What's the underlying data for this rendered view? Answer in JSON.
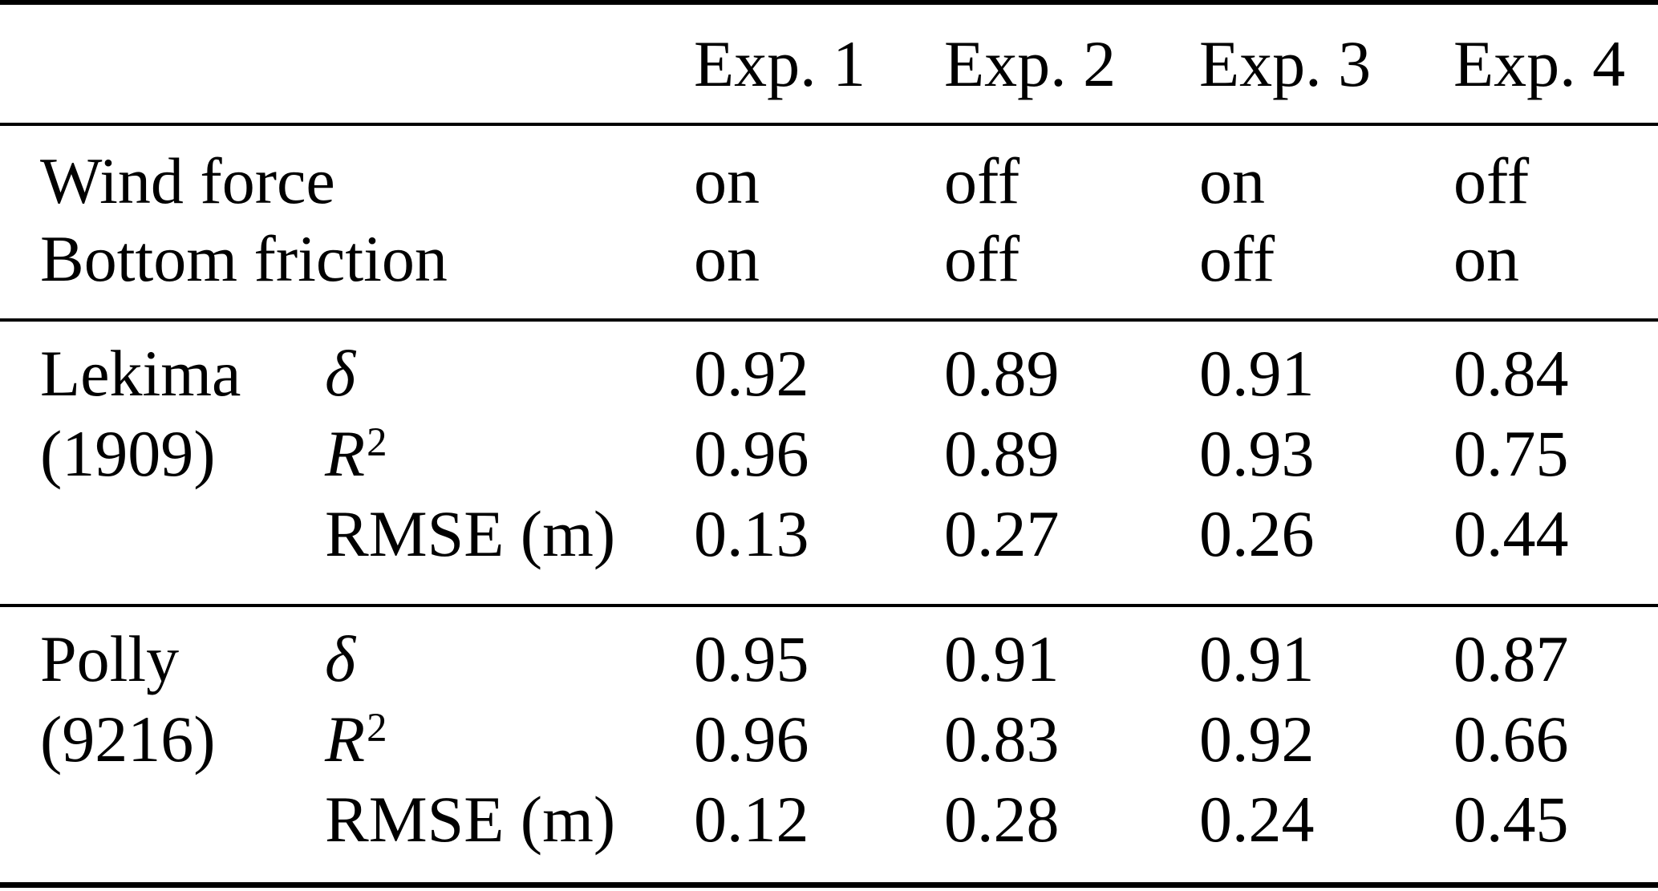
{
  "colors": {
    "background": "#ffffff",
    "text": "#000000",
    "rule": "#000000"
  },
  "table": {
    "headers": [
      "Exp. 1",
      "Exp. 2",
      "Exp. 3",
      "Exp. 4"
    ],
    "settings": {
      "wind": {
        "label": "Wind force",
        "values": [
          "on",
          "off",
          "on",
          "off"
        ]
      },
      "friction": {
        "label": "Bottom friction",
        "values": [
          "on",
          "off",
          "off",
          "on"
        ]
      }
    },
    "groups": {
      "lekima": {
        "name": "Lekima",
        "code": "(1909)",
        "delta": {
          "symbol": "δ",
          "values": [
            "0.92",
            "0.89",
            "0.91",
            "0.84"
          ]
        },
        "r2": {
          "base": "R",
          "sup": "2",
          "values": [
            "0.96",
            "0.89",
            "0.93",
            "0.75"
          ]
        },
        "rmse": {
          "label": "RMSE (m)",
          "values": [
            "0.13",
            "0.27",
            "0.26",
            "0.44"
          ]
        }
      },
      "polly": {
        "name": "Polly",
        "code": "(9216)",
        "delta": {
          "symbol": "δ",
          "values": [
            "0.95",
            "0.91",
            "0.91",
            "0.87"
          ]
        },
        "r2": {
          "base": "R",
          "sup": "2",
          "values": [
            "0.96",
            "0.83",
            "0.92",
            "0.66"
          ]
        },
        "rmse": {
          "label": "RMSE (m)",
          "values": [
            "0.12",
            "0.28",
            "0.24",
            "0.45"
          ]
        }
      }
    }
  }
}
